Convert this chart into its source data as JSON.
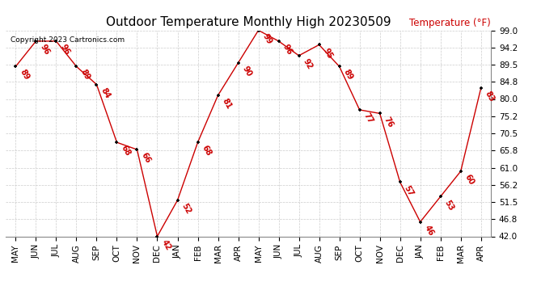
{
  "title": "Outdoor Temperature Monthly High 20230509",
  "copyright_text": "Copyright 2023 Cartronics.com",
  "ylabel": "Temperature (°F)",
  "months": [
    "MAY",
    "JUN",
    "JUL",
    "AUG",
    "SEP",
    "OCT",
    "NOV",
    "DEC",
    "JAN",
    "FEB",
    "MAR",
    "APR",
    "MAY",
    "JUN",
    "JUL",
    "AUG",
    "SEP",
    "OCT",
    "NOV",
    "DEC",
    "JAN",
    "FEB",
    "MAR",
    "APR"
  ],
  "values": [
    89,
    96,
    96,
    89,
    84,
    68,
    66,
    42,
    52,
    68,
    81,
    90,
    99,
    96,
    92,
    95,
    89,
    77,
    76,
    57,
    46,
    53,
    60,
    83
  ],
  "ylim": [
    42.0,
    99.0
  ],
  "yticks": [
    42.0,
    46.8,
    51.5,
    56.2,
    61.0,
    65.8,
    70.5,
    75.2,
    80.0,
    84.8,
    89.5,
    94.2,
    99.0
  ],
  "line_color": "#cc0000",
  "marker_color": "#000000",
  "label_color": "#cc0000",
  "grid_color": "#cccccc",
  "bg_color": "#ffffff",
  "title_fontsize": 11,
  "axis_fontsize": 7.5,
  "label_fontsize": 7,
  "copyright_color": "#000000",
  "ylabel_color": "#cc0000",
  "ylabel_fontsize": 8.5
}
